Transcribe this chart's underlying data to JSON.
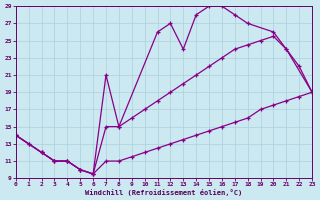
{
  "xlabel": "Windchill (Refroidissement éolien,°C)",
  "bg_color": "#cce8f0",
  "grid_color": "#aad0dc",
  "line_color": "#880088",
  "xlim": [
    0,
    23
  ],
  "ylim": [
    9,
    29
  ],
  "xticks": [
    0,
    1,
    2,
    3,
    4,
    5,
    6,
    7,
    8,
    9,
    10,
    11,
    12,
    13,
    14,
    15,
    16,
    17,
    18,
    19,
    20,
    21,
    22,
    23
  ],
  "yticks": [
    9,
    11,
    13,
    15,
    17,
    19,
    21,
    23,
    25,
    27,
    29
  ],
  "line_a_x": [
    0,
    1,
    2,
    3,
    4,
    5,
    6,
    7,
    8,
    9,
    10,
    11,
    12,
    13,
    14,
    15,
    16,
    17,
    18,
    19,
    20,
    21,
    22,
    23
  ],
  "line_a_y": [
    14,
    13,
    12,
    11,
    11,
    10,
    9.5,
    11,
    11,
    11.5,
    12,
    12.5,
    13,
    13.5,
    14,
    14.5,
    15,
    15.5,
    16,
    17,
    17.5,
    18,
    18.5,
    19
  ],
  "line_b_x": [
    0,
    1,
    2,
    3,
    4,
    5,
    6,
    7,
    8,
    9,
    10,
    11,
    12,
    13,
    14,
    15,
    16,
    17,
    18,
    19,
    20,
    21,
    22,
    23
  ],
  "line_b_y": [
    14,
    13,
    12,
    11,
    11,
    10,
    9.5,
    15,
    15,
    16,
    17,
    18,
    19,
    20,
    21,
    22,
    23,
    24,
    24.5,
    25,
    25.5,
    24,
    22,
    19
  ],
  "line_c_x": [
    0,
    2,
    3,
    4,
    5,
    6,
    7,
    8,
    11,
    12,
    13,
    14,
    15,
    16,
    17,
    18,
    20,
    21,
    23
  ],
  "line_c_y": [
    14,
    12,
    11,
    11,
    10,
    9.5,
    21,
    15,
    26,
    27,
    24,
    28,
    29,
    29,
    28,
    27,
    26,
    24,
    19
  ]
}
